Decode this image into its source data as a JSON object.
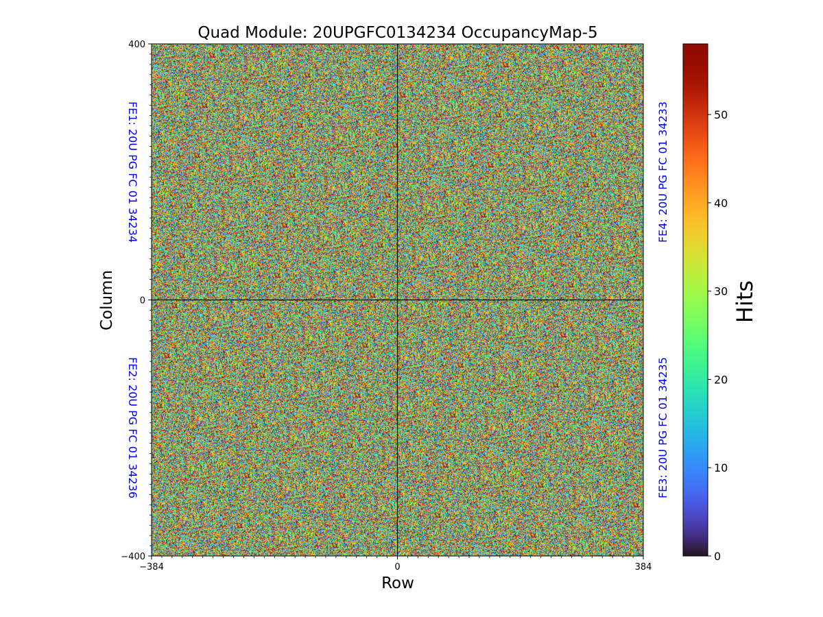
{
  "chart_data": {
    "type": "heatmap",
    "title": "Quad Module: 20UPGFC0134234 OccupancyMap-5",
    "xlabel": "Row",
    "ylabel": "Column",
    "xlim": [
      -384,
      384
    ],
    "ylim": [
      -400,
      400
    ],
    "x_ticks": [
      -384,
      0,
      384
    ],
    "x_tick_labels": [
      "−384",
      "0",
      "384"
    ],
    "y_ticks": [
      -400,
      0,
      400
    ],
    "y_tick_labels": [
      "−400",
      "0",
      "400"
    ],
    "colorbar": {
      "label": "Hits",
      "range": [
        0,
        58
      ],
      "ticks": [
        0,
        10,
        20,
        30,
        40,
        50
      ],
      "tick_labels": [
        "0",
        "10",
        "20",
        "30",
        "40",
        "50"
      ],
      "colormap": "turbo"
    },
    "value_distribution": {
      "min": 0,
      "max": 58,
      "pattern": "uniform random noise per pixel"
    },
    "chip_labels": [
      {
        "id": "fe1",
        "text": "FE1: 20U PG FC 01 34234",
        "side": "left",
        "quadrant": "top-left"
      },
      {
        "id": "fe2",
        "text": "FE2: 20U PG FC 01 34236",
        "side": "left",
        "quadrant": "bottom-left"
      },
      {
        "id": "fe3",
        "text": "FE3: 20U PG FC 01 34235",
        "side": "right",
        "quadrant": "bottom-right"
      },
      {
        "id": "fe4",
        "text": "FE4: 20U PG FC 01 34233",
        "side": "right",
        "quadrant": "top-right"
      }
    ],
    "divider_lines": {
      "x": 0,
      "y": 0
    },
    "colors": {
      "chip_label": "#0000ff",
      "divider": "#000000",
      "text": "#000000"
    }
  }
}
